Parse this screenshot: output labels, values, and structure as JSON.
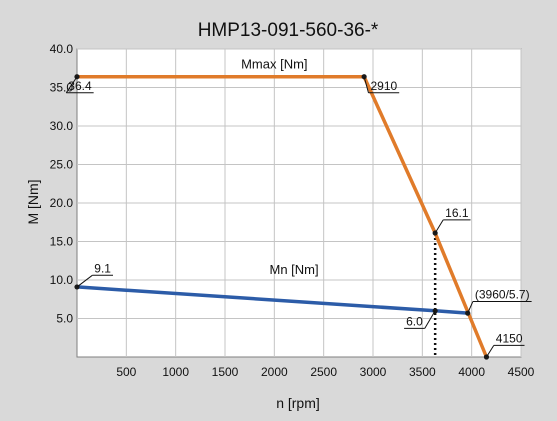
{
  "chart_data": {
    "type": "line",
    "title": "HMP13-091-560-36-*",
    "xlabel": "n [rpm]",
    "ylabel": "M [Nm]",
    "xlim": [
      0,
      4500
    ],
    "ylim": [
      0,
      40
    ],
    "x_ticks": [
      500,
      1000,
      1500,
      2000,
      2500,
      3000,
      3500,
      4000,
      4500
    ],
    "x_tick_labels": [
      "500",
      "1000",
      "1500",
      "2000",
      "2500",
      "3000",
      "3500",
      "4000",
      "4500"
    ],
    "y_ticks": [
      5,
      10,
      15,
      20,
      25,
      30,
      35,
      40
    ],
    "y_tick_labels": [
      "5.0",
      "10.0",
      "15.0",
      "20.0",
      "25.0",
      "30.0",
      "35.0",
      "40.0"
    ],
    "grid": true,
    "series": [
      {
        "name": "Mmax [Nm]",
        "color": "#e07b2a",
        "x": [
          0,
          2910,
          3630,
          4150
        ],
        "y": [
          36.4,
          36.4,
          16.1,
          0
        ],
        "label_at": [
          2000,
          38.1
        ]
      },
      {
        "name": "Mn [Nm]",
        "color": "#2c5ca8",
        "x": [
          0,
          3630,
          3960
        ],
        "y": [
          9.1,
          6.0,
          5.7
        ],
        "label_at": [
          2200,
          11.4
        ]
      }
    ],
    "annotations": [
      {
        "text": "36.4",
        "x": 0,
        "y": 36.4,
        "tx": 30,
        "ty": 34.7,
        "underline": true
      },
      {
        "text": "2910",
        "x": 2910,
        "y": 36.4,
        "tx": 3110,
        "ty": 34.7,
        "underline": true
      },
      {
        "text": "16.1",
        "x": 3630,
        "y": 16.1,
        "tx": 3850,
        "ty": 18.2,
        "underline": true
      },
      {
        "text": "9.1",
        "x": 0,
        "y": 9.1,
        "tx": 260,
        "ty": 11.0,
        "underline": true
      },
      {
        "text": "6.0",
        "x": 3630,
        "y": 6.0,
        "tx": 3420,
        "ty": 4.1,
        "underline": true
      },
      {
        "text": "(3960/5.7)",
        "x": 3960,
        "y": 5.7,
        "tx": 4310,
        "ty": 7.6,
        "underline": true
      },
      {
        "text": "4150",
        "x": 4150,
        "y": 0,
        "tx": 4380,
        "ty": 1.9,
        "underline": true
      }
    ],
    "vertical_marker": {
      "x": 3630,
      "y_from": 0,
      "y_to": 16.1,
      "style": "dotted"
    }
  }
}
